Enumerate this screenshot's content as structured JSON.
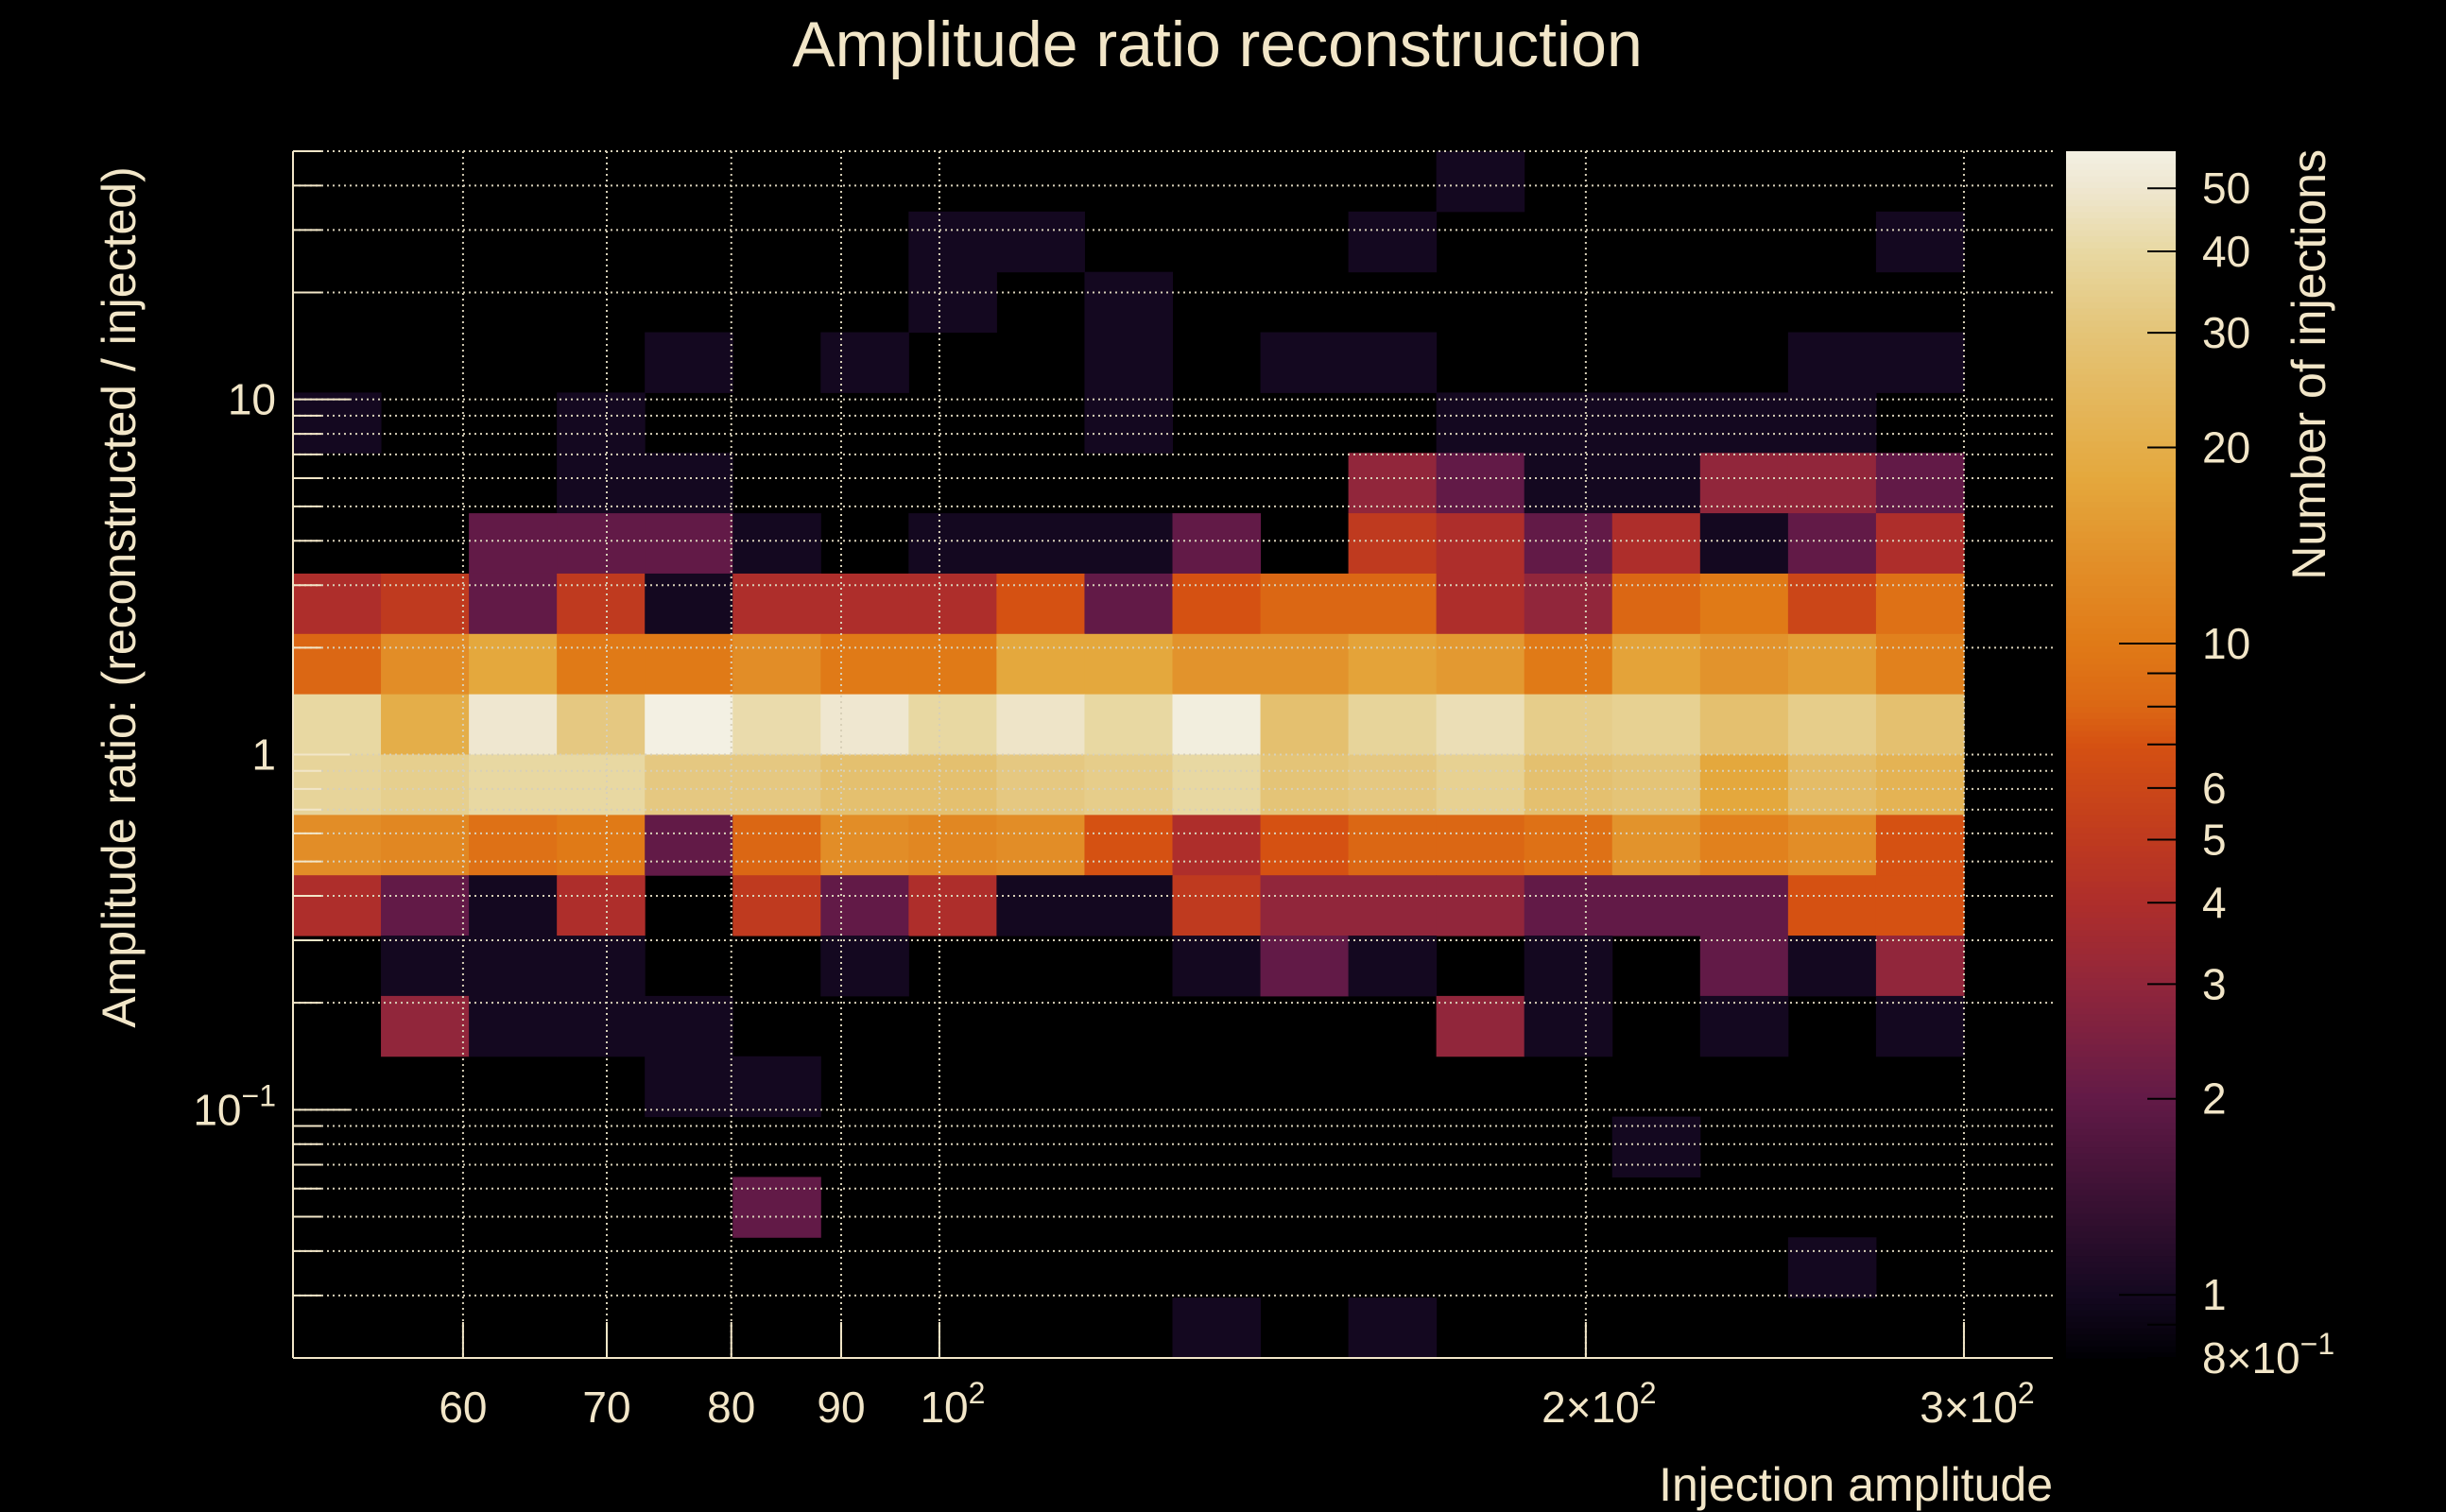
{
  "chart_data": {
    "type": "heatmap",
    "title": "Amplitude ratio reconstruction",
    "xlabel": "Injection amplitude",
    "ylabel": "Amplitude ratio: (reconstructed / injected)",
    "zlabel": "Number of injections",
    "xscale": "log",
    "yscale": "log",
    "zscale": "log",
    "xlim": [
      50,
      330
    ],
    "ylim": [
      0.02,
      50
    ],
    "zlim": [
      0.8,
      57
    ],
    "x_bins": {
      "count": 19,
      "range": [
        50,
        300
      ]
    },
    "y_bins": {
      "count": 20,
      "range": [
        0.02,
        50
      ]
    },
    "z_rows_top_to_bottom": [
      [
        0,
        0,
        0,
        0,
        0,
        0,
        0,
        0,
        0,
        0,
        0,
        0,
        0,
        1,
        0,
        0,
        0,
        0,
        0
      ],
      [
        0,
        0,
        0,
        0,
        0,
        0,
        0,
        1,
        1,
        0,
        0,
        0,
        1,
        0,
        0,
        0,
        0,
        0,
        1
      ],
      [
        0,
        0,
        0,
        0,
        0,
        0,
        0,
        1,
        0,
        1,
        0,
        0,
        0,
        0,
        0,
        0,
        0,
        0,
        0
      ],
      [
        0,
        0,
        0,
        0,
        1,
        0,
        1,
        0,
        0,
        1,
        0,
        1,
        1,
        0,
        0,
        0,
        0,
        1,
        1
      ],
      [
        1,
        0,
        0,
        1,
        0,
        0,
        0,
        0,
        0,
        1,
        0,
        0,
        0,
        1,
        1,
        1,
        1,
        1,
        0
      ],
      [
        0,
        0,
        0,
        1,
        1,
        0,
        0,
        0,
        0,
        0,
        0,
        0,
        3,
        2,
        1,
        1,
        3,
        3,
        2
      ],
      [
        0,
        0,
        2,
        2,
        2,
        1,
        0,
        1,
        1,
        1,
        2,
        0,
        5,
        4,
        2,
        4,
        1,
        2,
        4
      ],
      [
        4,
        5,
        2,
        5,
        1,
        4,
        4,
        4,
        7,
        2,
        7,
        8,
        8,
        4,
        3,
        8,
        10,
        6,
        9
      ],
      [
        8,
        13,
        18,
        10,
        10,
        13,
        10,
        10,
        18,
        18,
        14,
        14,
        17,
        15,
        10,
        17,
        14,
        16,
        11
      ],
      [
        40,
        20,
        50,
        32,
        57,
        42,
        50,
        40,
        48,
        40,
        55,
        28,
        38,
        44,
        34,
        36,
        28,
        34,
        28
      ],
      [
        38,
        35,
        40,
        40,
        32,
        32,
        28,
        28,
        32,
        34,
        40,
        30,
        32,
        36,
        28,
        30,
        18,
        26,
        22
      ],
      [
        13,
        12,
        9,
        10,
        2,
        8,
        13,
        12,
        13,
        7,
        4,
        7,
        8,
        8,
        9,
        14,
        11,
        13,
        7
      ],
      [
        4,
        2,
        1,
        4,
        0,
        5,
        2,
        4,
        1,
        1,
        5,
        3,
        3,
        3,
        2,
        2,
        2,
        7,
        7
      ],
      [
        0,
        1,
        1,
        1,
        0,
        0,
        1,
        0,
        0,
        0,
        1,
        2,
        1,
        0,
        1,
        0,
        2,
        1,
        3
      ],
      [
        0,
        3,
        1,
        1,
        1,
        0,
        0,
        0,
        0,
        0,
        0,
        0,
        0,
        3,
        1,
        0,
        1,
        0,
        1
      ],
      [
        0,
        0,
        0,
        0,
        1,
        1,
        0,
        0,
        0,
        0,
        0,
        0,
        0,
        0,
        0,
        0,
        0,
        0,
        0
      ],
      [
        0,
        0,
        0,
        0,
        0,
        0,
        0,
        0,
        0,
        0,
        0,
        0,
        0,
        0,
        0,
        1,
        0,
        0,
        0
      ],
      [
        0,
        0,
        0,
        0,
        0,
        2,
        0,
        0,
        0,
        0,
        0,
        0,
        0,
        0,
        0,
        0,
        0,
        0,
        0
      ],
      [
        0,
        0,
        0,
        0,
        0,
        0,
        0,
        0,
        0,
        0,
        0,
        0,
        0,
        0,
        0,
        0,
        0,
        1,
        0
      ],
      [
        0,
        0,
        0,
        0,
        0,
        0,
        0,
        0,
        0,
        0,
        1,
        0,
        1,
        0,
        0,
        0,
        0,
        0,
        0
      ]
    ],
    "x_ticks": [
      {
        "value": 60,
        "label": "60",
        "sup": ""
      },
      {
        "value": 70,
        "label": "70",
        "sup": ""
      },
      {
        "value": 80,
        "label": "80",
        "sup": ""
      },
      {
        "value": 90,
        "label": "90",
        "sup": ""
      },
      {
        "value": 100,
        "label": "10",
        "sup": "2"
      },
      {
        "value": 200,
        "label": "2×10",
        "sup": "2"
      },
      {
        "value": 300,
        "label": "3×10",
        "sup": "2"
      }
    ],
    "y_ticks": [
      {
        "value": 0.1,
        "label": "10",
        "sup": "−1"
      },
      {
        "value": 1,
        "label": "1",
        "sup": ""
      },
      {
        "value": 10,
        "label": "10",
        "sup": ""
      }
    ],
    "z_ticks": [
      {
        "value": 50,
        "label": "50",
        "sup": ""
      },
      {
        "value": 40,
        "label": "40",
        "sup": ""
      },
      {
        "value": 30,
        "label": "30",
        "sup": ""
      },
      {
        "value": 20,
        "label": "20",
        "sup": ""
      },
      {
        "value": 10,
        "label": "10",
        "sup": ""
      },
      {
        "value": 6,
        "label": "6",
        "sup": ""
      },
      {
        "value": 5,
        "label": "5",
        "sup": ""
      },
      {
        "value": 4,
        "label": "4",
        "sup": ""
      },
      {
        "value": 3,
        "label": "3",
        "sup": ""
      },
      {
        "value": 2,
        "label": "2",
        "sup": ""
      },
      {
        "value": 1,
        "label": "1",
        "sup": ""
      },
      {
        "value": 0.8,
        "label": "8×10",
        "sup": "−1"
      }
    ],
    "grid": true,
    "colormap_stops": [
      [
        0.8,
        "#000004"
      ],
      [
        1,
        "#140820"
      ],
      [
        2,
        "#621a47"
      ],
      [
        3,
        "#91263b"
      ],
      [
        4,
        "#ae2e2b"
      ],
      [
        5,
        "#bf3a1f"
      ],
      [
        7,
        "#d55112"
      ],
      [
        8,
        "#db6714"
      ],
      [
        10,
        "#e07a17"
      ],
      [
        13,
        "#e28d27"
      ],
      [
        18,
        "#e4a83d"
      ],
      [
        30,
        "#e4c477"
      ],
      [
        40,
        "#e8d8a2"
      ],
      [
        50,
        "#efe7d0"
      ],
      [
        57,
        "#f3f0e3"
      ]
    ],
    "background_color": "#000000",
    "text_color": "#f2e6c8"
  }
}
